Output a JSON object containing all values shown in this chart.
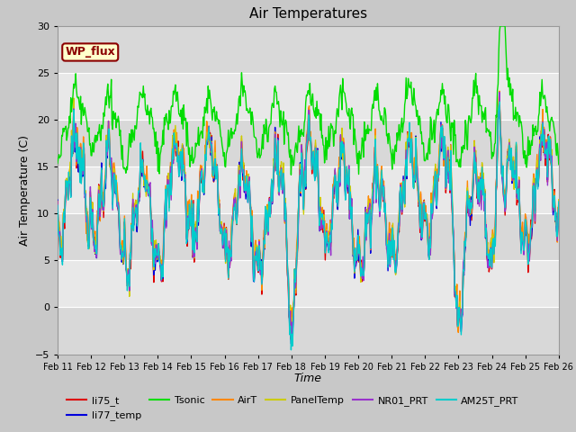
{
  "title": "Air Temperatures",
  "xlabel": "Time",
  "ylabel": "Air Temperature (C)",
  "ylim": [
    -5,
    30
  ],
  "yticks": [
    -5,
    0,
    5,
    10,
    15,
    20,
    25,
    30
  ],
  "x_tick_labels": [
    "Feb 11",
    "Feb 12",
    "Feb 13",
    "Feb 14",
    "Feb 15",
    "Feb 16",
    "Feb 17",
    "Feb 18",
    "Feb 19",
    "Feb 20",
    "Feb 21",
    "Feb 22",
    "Feb 23",
    "Feb 24",
    "Feb 25",
    "Feb 26"
  ],
  "background_color": "#c8c8c8",
  "plot_bg_color": "#e0e0e0",
  "wp_flux_label": "WP_flux",
  "wp_flux_bg": "#ffffcc",
  "wp_flux_border": "#8b0000",
  "series_order": [
    "li75_t",
    "li77_temp",
    "Tsonic",
    "AirT",
    "PanelTemp",
    "NR01_PRT",
    "AM25T_PRT"
  ],
  "series": {
    "li75_t": {
      "color": "#dd0000",
      "lw": 1.0
    },
    "li77_temp": {
      "color": "#0000dd",
      "lw": 1.0
    },
    "Tsonic": {
      "color": "#00dd00",
      "lw": 1.0
    },
    "AirT": {
      "color": "#ff8800",
      "lw": 1.0
    },
    "PanelTemp": {
      "color": "#cccc00",
      "lw": 1.0
    },
    "NR01_PRT": {
      "color": "#9933cc",
      "lw": 1.0
    },
    "AM25T_PRT": {
      "color": "#00cccc",
      "lw": 1.0
    }
  },
  "legend_labels": [
    "li75_t",
    "li77_temp",
    "Tsonic",
    "AirT",
    "PanelTemp",
    "NR01_PRT",
    "AM25T_PRT"
  ]
}
